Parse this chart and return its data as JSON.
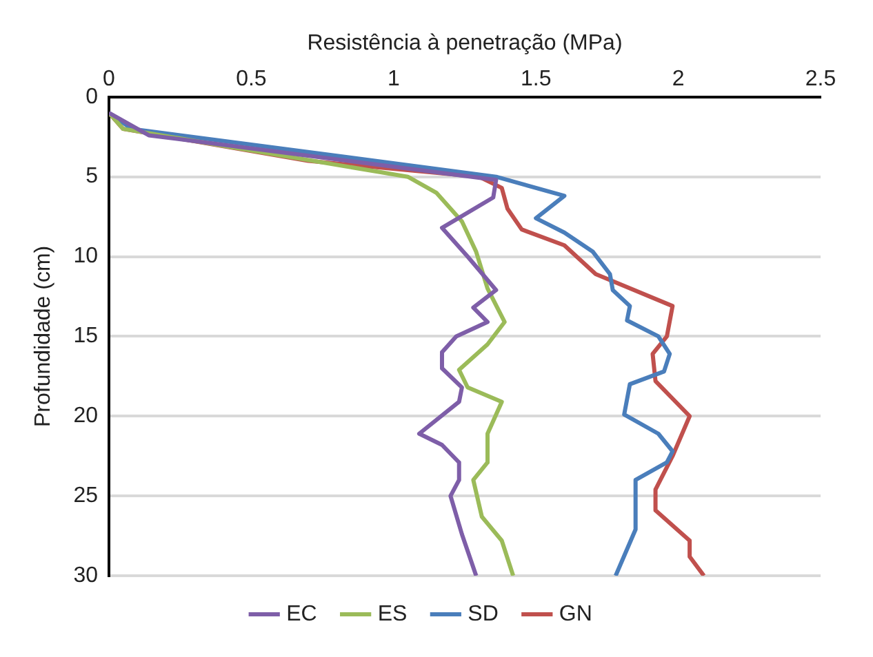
{
  "chart_data": {
    "type": "line",
    "xlabel": "Resistência à penetração (MPa)",
    "ylabel": "Profundidade (cm)",
    "xlim": [
      0,
      2.5
    ],
    "xticks": [
      0,
      0.5,
      1,
      1.5,
      2,
      2.5
    ],
    "ylim": [
      30,
      0
    ],
    "yticks": [
      0,
      5,
      10,
      15,
      20,
      25,
      30
    ],
    "grid": "y",
    "legend": "bottom",
    "marker": "none",
    "line_style": "solid",
    "series": [
      {
        "name": "EC",
        "color": "#7e5ea8",
        "x": [
          0,
          0.14,
          1.36,
          1.35,
          1.17,
          1.26,
          1.36,
          1.28,
          1.33,
          1.22,
          1.17,
          1.17,
          1.24,
          1.23,
          1.09,
          1.17,
          1.23,
          1.23,
          1.2,
          1.24,
          1.29
        ],
        "values": [
          1,
          2.4,
          5.2,
          6.3,
          8.2,
          10,
          12.1,
          13.2,
          14.1,
          15,
          16,
          17,
          18.2,
          19.1,
          21.1,
          21.8,
          22.9,
          24,
          25,
          27.4,
          30
        ]
      },
      {
        "name": "ES",
        "color": "#9bbb59",
        "x": [
          0,
          0.05,
          1.05,
          1.15,
          1.24,
          1.29,
          1.33,
          1.39,
          1.33,
          1.23,
          1.26,
          1.38,
          1.33,
          1.33,
          1.28,
          1.31,
          1.38,
          1.42
        ],
        "values": [
          1,
          2,
          5,
          6,
          7.8,
          9.7,
          12,
          14.1,
          15.5,
          17.1,
          18.2,
          19.1,
          21.1,
          22.9,
          24,
          26.3,
          27.8,
          30
        ]
      },
      {
        "name": "SD",
        "color": "#4a7ebb",
        "x": [
          0,
          0.08,
          1.36,
          1.6,
          1.5,
          1.6,
          1.7,
          1.76,
          1.77,
          1.83,
          1.82,
          1.93,
          1.97,
          1.95,
          1.83,
          1.81,
          1.93,
          1.98,
          1.96,
          1.85,
          1.85,
          1.78
        ],
        "values": [
          1,
          2,
          5,
          6.2,
          7.6,
          8.5,
          9.7,
          11.1,
          12.1,
          13.1,
          14,
          15,
          16.1,
          17.2,
          18,
          19.9,
          21.1,
          22.2,
          22.9,
          24,
          27.1,
          30
        ]
      },
      {
        "name": "GN",
        "color": "#c0504d",
        "x": [
          0,
          0.05,
          0.7,
          1.3,
          1.38,
          1.4,
          1.45,
          1.6,
          1.71,
          1.98,
          1.96,
          1.91,
          1.92,
          2.04,
          1.98,
          1.92,
          1.92,
          2.04,
          2.04,
          2.09
        ],
        "values": [
          1,
          2,
          4,
          5,
          5.7,
          7,
          8.3,
          9.3,
          11.1,
          13.1,
          15,
          16.1,
          17.8,
          20,
          22.5,
          24.6,
          25.9,
          27.8,
          28.8,
          30
        ]
      }
    ]
  }
}
